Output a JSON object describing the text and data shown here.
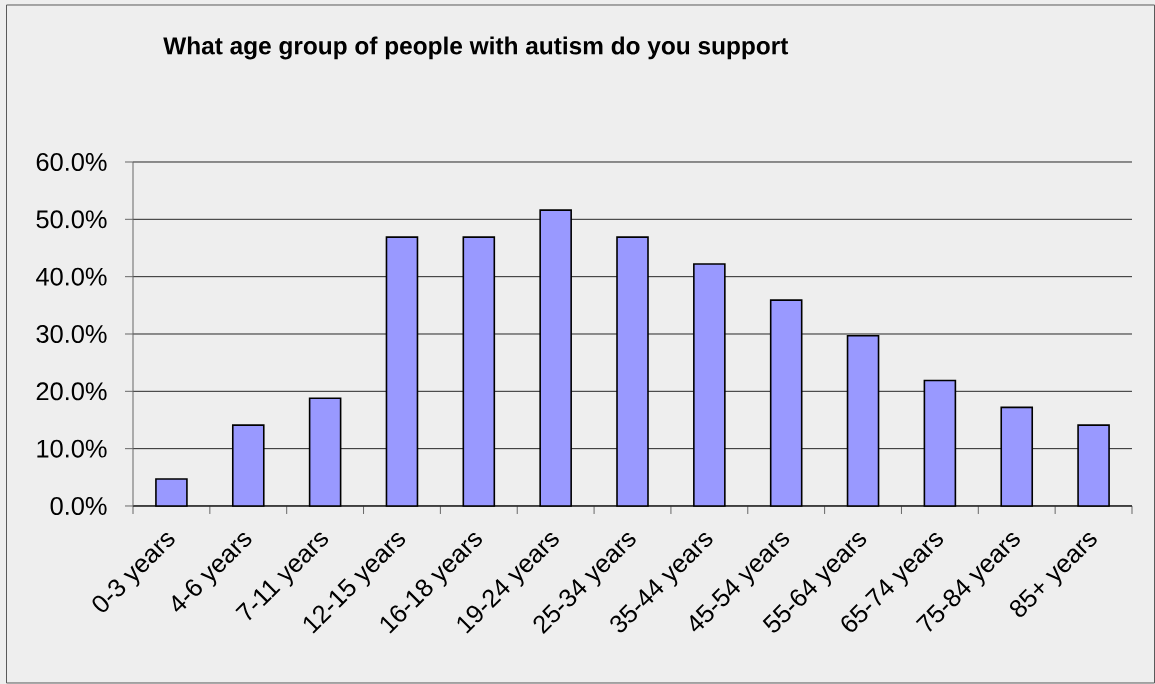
{
  "chart_data": {
    "type": "bar",
    "title": "What age group of people with autism do you support",
    "categories": [
      "0-3 years",
      "4-6 years",
      "7-11 years",
      "12-15 years",
      "16-18 years",
      "19-24 years",
      "25-34 years",
      "35-44 years",
      "45-54 years",
      "55-64 years",
      "65-74 years",
      "75-84 years",
      "85+ years"
    ],
    "values": [
      4.7,
      14.1,
      18.8,
      46.9,
      46.9,
      51.6,
      46.9,
      42.2,
      35.9,
      29.7,
      21.9,
      17.2,
      14.1
    ],
    "color": "#9999ff",
    "ylim": [
      0,
      60
    ],
    "yticks": [
      {
        "value": 0,
        "label": "0.0%"
      },
      {
        "value": 10,
        "label": "10.0%"
      },
      {
        "value": 20,
        "label": "20.0%"
      },
      {
        "value": 30,
        "label": "30.0%"
      },
      {
        "value": 40,
        "label": "40.0%"
      },
      {
        "value": 50,
        "label": "50.0%"
      },
      {
        "value": 60,
        "label": "60.0%"
      }
    ],
    "grid": "y"
  }
}
